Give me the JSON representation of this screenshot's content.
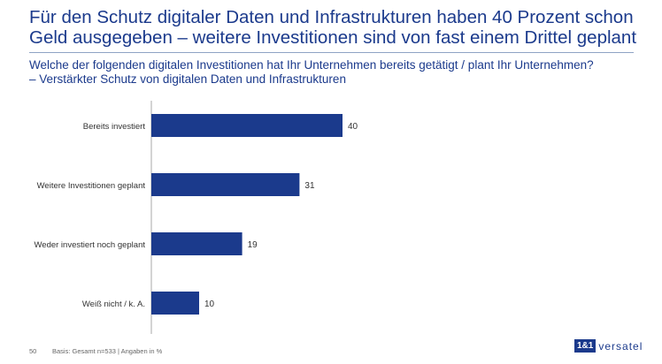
{
  "title": "Für den Schutz digitaler Daten und Infrastrukturen haben 40 Prozent schon Geld ausgegeben – weitere Investitionen sind von fast einem Drittel geplant",
  "subtitle_line1": "Welche der folgenden digitalen Investitionen hat Ihr Unternehmen bereits getätigt / plant Ihr Unternehmen?",
  "subtitle_line2": "– Verstärkter Schutz von digitalen Daten und Infrastrukturen",
  "footer": {
    "page": "50",
    "basis": "Basis: Gesamt n=533 | Angaben in %"
  },
  "logo": {
    "box": "1&1",
    "text": "versatel"
  },
  "colors": {
    "bar": "#1b3a8c",
    "title": "#1b3a8c"
  },
  "chart_data": {
    "type": "bar",
    "orientation": "horizontal",
    "categories": [
      "Bereits investiert",
      "Weitere Investitionen geplant",
      "Weder investiert noch geplant",
      "Weiß nicht / k. A."
    ],
    "values": [
      40,
      31,
      19,
      10
    ],
    "unit": "%",
    "grid": false
  }
}
